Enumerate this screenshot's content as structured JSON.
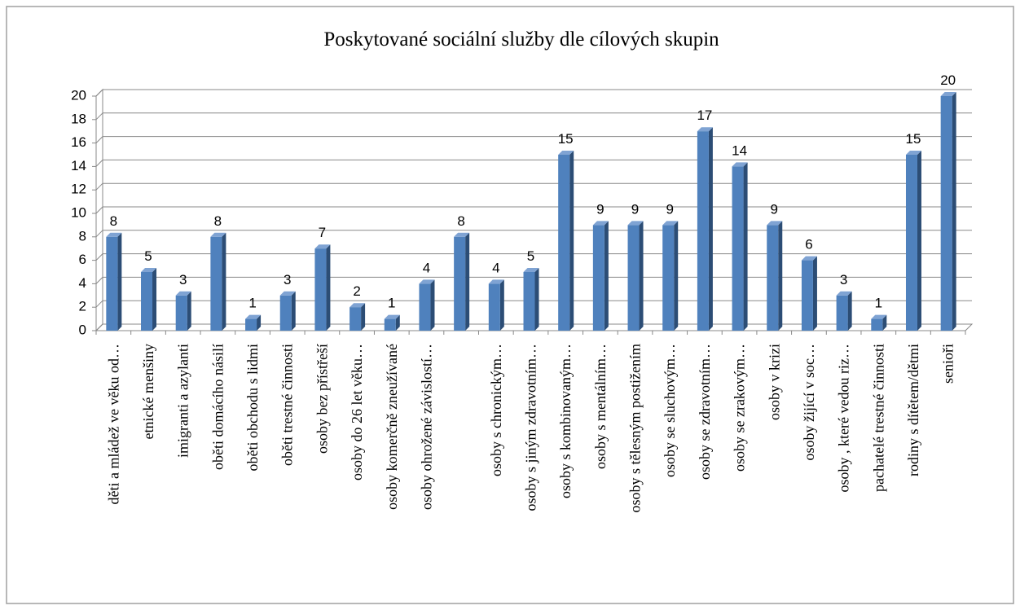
{
  "chart_data": {
    "type": "bar",
    "title": "Poskytované sociální služby dle cílových skupin",
    "categories": [
      "děti a mládež ve věku od…",
      "etnické menšiny",
      "imigranti a azylanti",
      "oběti domácího násilí",
      "oběti obchodu s lidmi",
      "oběti trestné činnosti",
      "osoby bez přístřeší",
      "osoby do 26 let věku…",
      "osoby komerčně zneužívané",
      "osoby ohrožené závislostí…",
      null,
      "osoby s chronickým…",
      "osoby s jiným zdravotním…",
      "osoby s kombinovaným…",
      "osoby s mentálním…",
      "osoby s tělesným postižením",
      "osoby se sluchovým…",
      "osoby se zdravotním…",
      "osoby se zrakovým…",
      "osoby v krizi",
      "osoby žijící v soc…",
      "osoby , které vedou riz…",
      "pachatelé trestné činnosti",
      "rodiny s dítětem/dětmi",
      "senioři"
    ],
    "values": [
      8,
      5,
      3,
      8,
      1,
      3,
      7,
      2,
      1,
      4,
      8,
      4,
      5,
      15,
      9,
      9,
      9,
      17,
      14,
      9,
      6,
      3,
      1,
      15,
      20
    ],
    "color": "#4f81bd",
    "ylim": [
      0,
      20
    ],
    "yticks": [
      0,
      2,
      4,
      6,
      8,
      10,
      12,
      14,
      16,
      18,
      20
    ],
    "grid": true
  }
}
